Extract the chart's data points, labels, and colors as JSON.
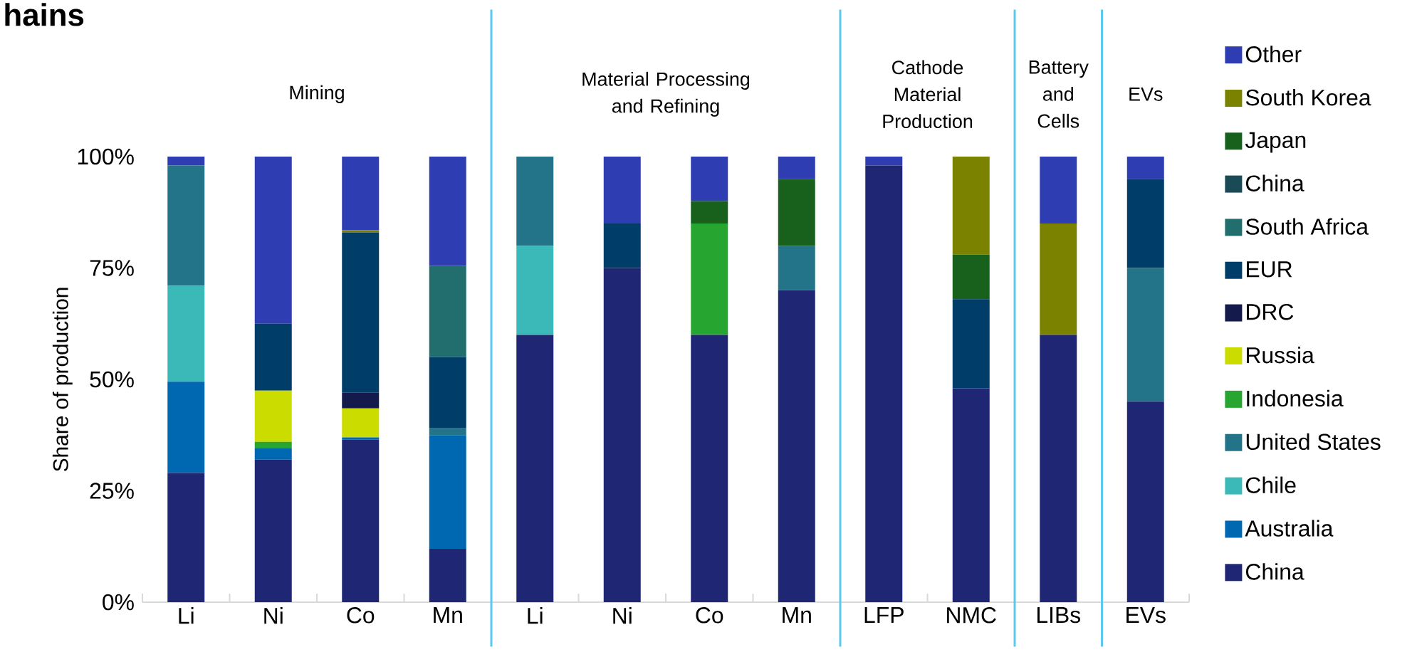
{
  "chart_data": {
    "type": "bar",
    "stacked": true,
    "title": "hains",
    "ylabel": "Share of production",
    "categories": [
      "Li",
      "Ni",
      "Co",
      "Mn",
      "Li",
      "Ni",
      "Co",
      "Mn",
      "LFP",
      "NMC",
      "LIBs",
      "EVs"
    ],
    "ylim": [
      0,
      100
    ],
    "yticks": [
      {
        "value": 0,
        "label": "0%"
      },
      {
        "value": 25,
        "label": "25%"
      },
      {
        "value": 50,
        "label": "50%"
      },
      {
        "value": 75,
        "label": "75%"
      },
      {
        "value": 100,
        "label": "100%"
      }
    ],
    "legend": "right",
    "annotations": [
      "Mining",
      "Material Processing and Refining",
      "Cathode Material Production",
      "Battery and Cells",
      "EVs"
    ],
    "series": [
      {
        "name": "China",
        "color": "#1f2774",
        "values": [
          29,
          32,
          36.5,
          12,
          60,
          75,
          60,
          70,
          98,
          48,
          60,
          45
        ]
      },
      {
        "name": "Australia",
        "color": "#0068b0",
        "values": [
          20.5,
          2.5,
          0.5,
          25.5,
          null,
          null,
          null,
          null,
          null,
          null,
          null,
          null
        ]
      },
      {
        "name": "Chile",
        "color": "#3bb9b8",
        "values": [
          21.5,
          null,
          null,
          null,
          20,
          null,
          null,
          null,
          null,
          null,
          null,
          null
        ]
      },
      {
        "name": "United States",
        "color": "#247489",
        "values": [
          27,
          null,
          null,
          1.5,
          20,
          null,
          null,
          10,
          null,
          null,
          null,
          30
        ]
      },
      {
        "name": "Indonesia",
        "color": "#26a630",
        "values": [
          null,
          1.5,
          null,
          null,
          null,
          null,
          25,
          null,
          null,
          null,
          null,
          null
        ]
      },
      {
        "name": "Russia",
        "color": "#cbdd00",
        "values": [
          null,
          11.5,
          6.5,
          null,
          null,
          null,
          null,
          null,
          null,
          null,
          null,
          null
        ]
      },
      {
        "name": "DRC",
        "color": "#141a4c",
        "values": [
          null,
          null,
          3.5,
          null,
          null,
          null,
          null,
          null,
          null,
          null,
          null,
          null
        ]
      },
      {
        "name": "EUR",
        "color": "#003d68",
        "values": [
          null,
          15,
          36,
          16,
          null,
          10,
          null,
          null,
          null,
          20,
          null,
          20
        ]
      },
      {
        "name": "South Africa",
        "color": "#226e6e",
        "values": [
          null,
          null,
          null,
          20.5,
          null,
          null,
          null,
          null,
          null,
          null,
          null,
          null
        ]
      },
      {
        "name": "China",
        "color": "#1a4a56",
        "values": [
          null,
          null,
          null,
          null,
          null,
          null,
          null,
          null,
          null,
          null,
          null,
          null
        ]
      },
      {
        "name": "Japan",
        "color": "#18611d",
        "values": [
          null,
          null,
          null,
          null,
          null,
          null,
          5,
          15,
          null,
          10,
          null,
          null
        ]
      },
      {
        "name": "South Korea",
        "color": "#7b8200",
        "values": [
          null,
          null,
          0.5,
          null,
          null,
          null,
          null,
          null,
          null,
          22,
          25,
          null
        ]
      },
      {
        "name": "Other",
        "color": "#2e3db2",
        "values": [
          2,
          37.5,
          16.5,
          24.5,
          null,
          15,
          10,
          5,
          2,
          null,
          15,
          5
        ]
      }
    ]
  }
}
